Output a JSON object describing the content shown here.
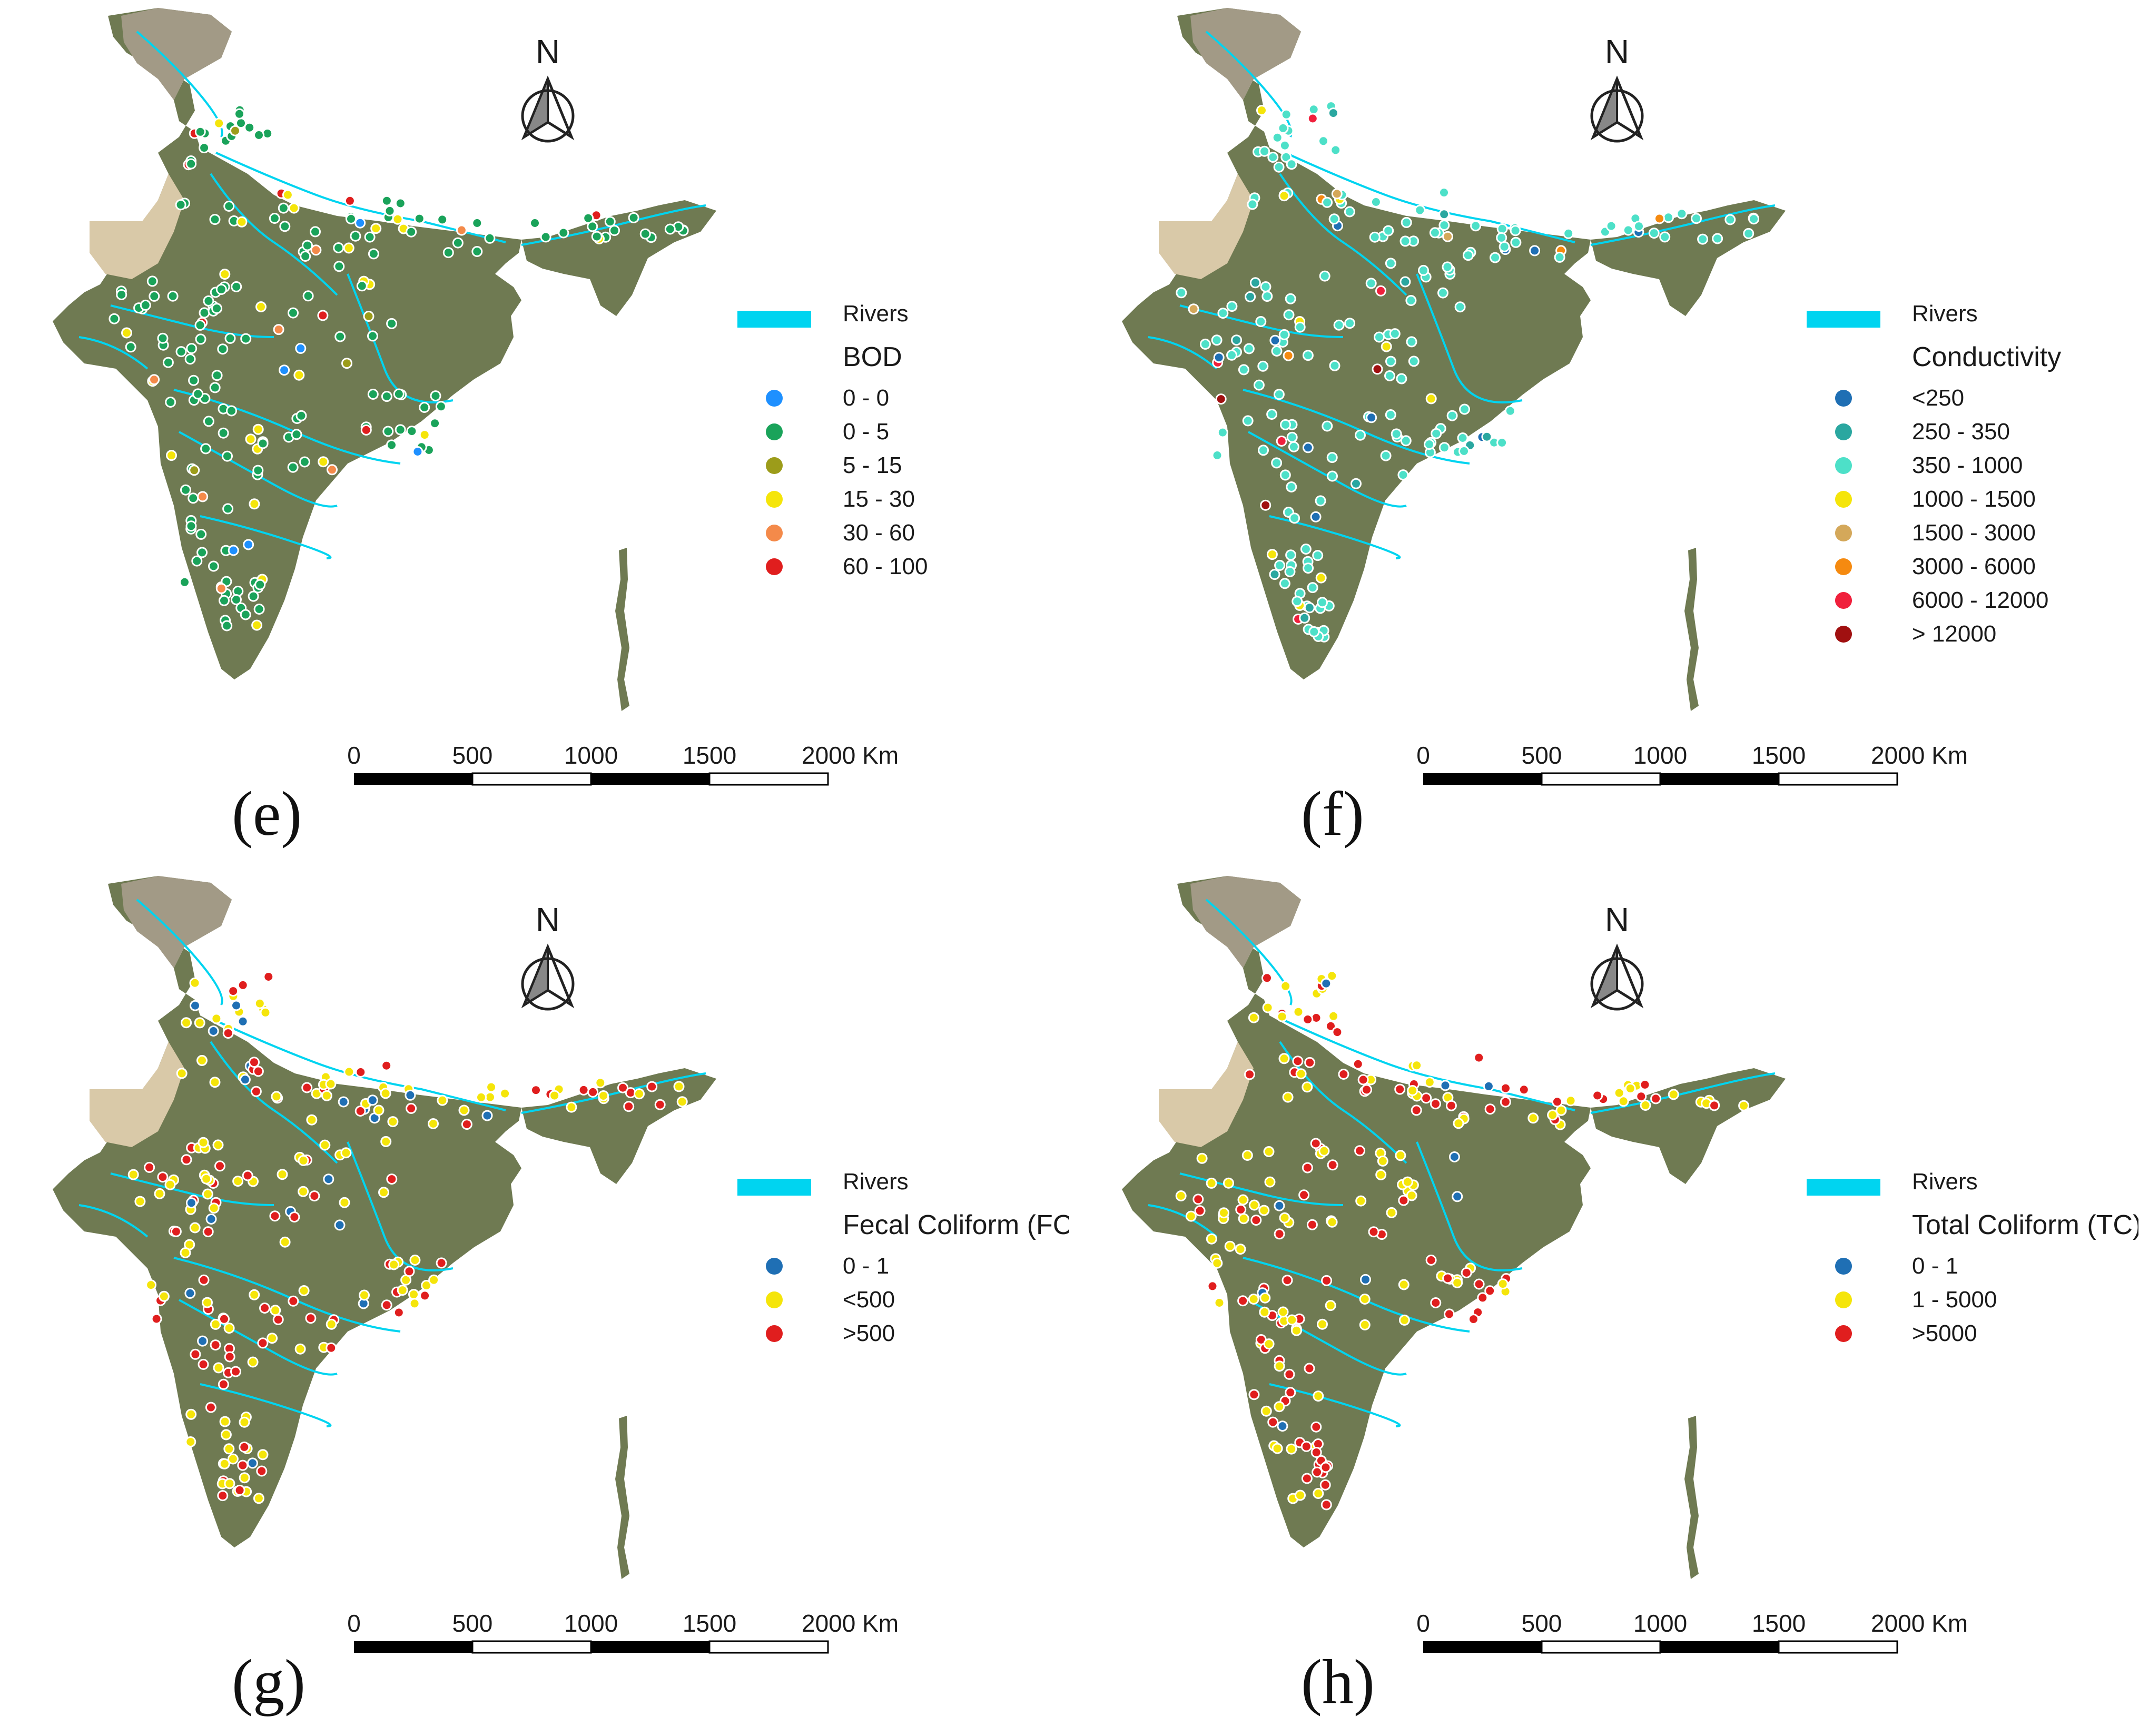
{
  "colors": {
    "river": "#00d4f0",
    "land": "#6f7a52",
    "desert": "#d9c9a8",
    "mountain": "#a29a86",
    "dotStroke": "#ffffff"
  },
  "common": {
    "north_label": "N",
    "rivers_label": "Rivers",
    "scale_labels": [
      "0",
      "500",
      "1000",
      "1500",
      "2000 Km"
    ]
  },
  "panels": [
    {
      "label": "(e)",
      "title": "BOD",
      "classes": [
        {
          "label": "0 - 0",
          "color": "#1e90ff"
        },
        {
          "label": "0 - 5",
          "color": "#1aa35a"
        },
        {
          "label": "5 - 15",
          "color": "#9c9c1a"
        },
        {
          "label": "15 - 30",
          "color": "#f5e50a"
        },
        {
          "label": "30 - 60",
          "color": "#f48a4a"
        },
        {
          "label": "60 - 100",
          "color": "#e01e1e"
        }
      ]
    },
    {
      "label": "(f)",
      "title": "Conductivity",
      "classes": [
        {
          "label": "<250",
          "color": "#1f6fb4"
        },
        {
          "label": "250 - 350",
          "color": "#2aa7a0"
        },
        {
          "label": "350 - 1000",
          "color": "#4de0c8"
        },
        {
          "label": "1000 - 1500",
          "color": "#f5e50a"
        },
        {
          "label": "1500 - 3000",
          "color": "#d4a85a"
        },
        {
          "label": "3000 - 6000",
          "color": "#f58a10"
        },
        {
          "label": "6000 - 12000",
          "color": "#f0203c"
        },
        {
          "label": "> 12000",
          "color": "#a01010"
        }
      ]
    },
    {
      "label": "(g)",
      "title": "Fecal Coliform (FC)",
      "classes": [
        {
          "label": "0 - 1",
          "color": "#1f6fb4"
        },
        {
          "label": "<500",
          "color": "#f5e50a"
        },
        {
          "label": ">500",
          "color": "#e01e1e"
        }
      ]
    },
    {
      "label": "(h)",
      "title": "Total Coliform (TC)",
      "classes": [
        {
          "label": "0 - 1",
          "color": "#1f6fb4"
        },
        {
          "label": "1 - 5000",
          "color": "#f5e50a"
        },
        {
          "label": ">5000",
          "color": "#e01e1e"
        }
      ]
    }
  ]
}
